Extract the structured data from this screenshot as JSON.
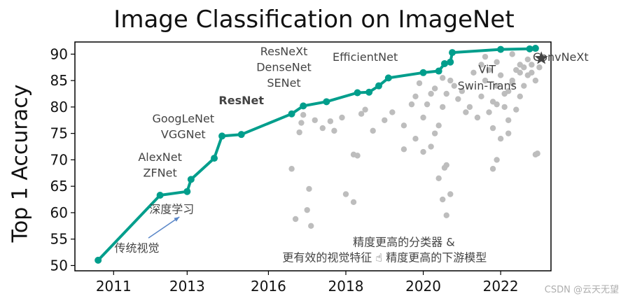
{
  "chart_data": {
    "type": "scatter",
    "title": "Image Classification on ImageNet",
    "xlabel": "",
    "ylabel": "Top 1 Accuracy",
    "xlim": [
      2010,
      2022.3
    ],
    "ylim": [
      49,
      92.3
    ],
    "xtick_positions": [
      2011,
      2012.9,
      2015,
      2017,
      2019,
      2021
    ],
    "xtick_labels": [
      "2011",
      "2013",
      "2016",
      "2018",
      "2020",
      "2022"
    ],
    "yticks": [
      50,
      55,
      60,
      65,
      70,
      75,
      80,
      85,
      90
    ],
    "grid": false,
    "colors": {
      "sota": "#009e8c",
      "others": "#bdbdbd",
      "convnext": "#444444",
      "vit": "#cc3333",
      "efficientnet": "#4a7ab8",
      "cn_text": "#cc0000",
      "arrow": "#5a87c8"
    },
    "series": [
      {
        "x": [
          2010.6,
          2012.2,
          2012.9,
          2013.0,
          2013.6,
          2013.8,
          2014.3,
          2015.6,
          2015.9,
          2016.5,
          2017.3,
          2017.6,
          2017.85,
          2018.1,
          2019.0,
          2019.4,
          2019.55,
          2019.7,
          2019.75,
          2021.0,
          2021.75,
          2021.9
        ],
        "y": [
          51,
          63.3,
          64,
          66.3,
          70.3,
          74.5,
          74.8,
          78.7,
          80.2,
          81,
          82.7,
          82.8,
          84,
          85.5,
          86.5,
          86.8,
          88.2,
          88.5,
          90.3,
          90.9,
          91.0,
          91.1
        ]
      },
      {
        "x": [
          2015.6,
          2015.8,
          2015.85,
          2015.9,
          2016.2,
          2016.4,
          2016.6,
          2016.7,
          2016.9,
          2017.2,
          2017.3,
          2017.4,
          2017.5,
          2017.7,
          2018.0,
          2018.2,
          2018.5,
          2018.7,
          2018.8,
          2018.9,
          2019.0,
          2019.1,
          2019.2,
          2019.3,
          2019.4,
          2019.5,
          2019.6,
          2019.7,
          2019.3,
          2019.5,
          2019.8,
          2020.0,
          2020.2,
          2020.4,
          2020.5,
          2020.6,
          2020.7,
          2020.8,
          2020.9,
          2021.0,
          2021.1,
          2021.2,
          2021.3,
          2021.4,
          2021.5,
          2021.6,
          2021.7,
          2021.8,
          2021.9,
          2022.0,
          2020.3,
          2020.5,
          2020.7,
          2020.9,
          2021.1,
          2021.3,
          2021.5,
          2021.7,
          2021.2,
          2020.8,
          2021.0,
          2021.4,
          2021.6,
          2020.6,
          2020.9,
          2021.3,
          2021.5,
          2021.8,
          2019.9,
          2020.1,
          2018.8,
          2019.2,
          2019.6,
          2018.5,
          2019.0,
          2021.2,
          2021.9,
          2016.0,
          2015.7,
          2016.1,
          2016.05,
          2017.0,
          2017.2,
          2019.4,
          2019.55,
          2019.7,
          2019.5,
          2019.6,
          2020.8,
          2020.9,
          2021.95
        ],
        "y": [
          68.3,
          75.2,
          77.0,
          78.5,
          77.5,
          76.0,
          77.3,
          75.5,
          78.0,
          71.0,
          70.8,
          78.7,
          79.5,
          75.5,
          77.5,
          79.0,
          76.5,
          80.5,
          82.0,
          84.5,
          78.0,
          80.5,
          82.5,
          75.0,
          76.5,
          80.0,
          82.5,
          85.0,
          83.5,
          85.5,
          84.0,
          83.0,
          80.0,
          78.0,
          82.0,
          85.0,
          79.0,
          81.0,
          84.0,
          86.0,
          80.0,
          83.0,
          85.0,
          87.0,
          82.0,
          84.0,
          86.0,
          88.0,
          85.0,
          87.5,
          86.5,
          88.0,
          87.0,
          80.5,
          82.5,
          84.5,
          86.5,
          89.0,
          77.5,
          76.0,
          74.0,
          79.5,
          87.5,
          89.5,
          88.5,
          90.0,
          88.0,
          86.5,
          81.5,
          79.0,
          74.0,
          72.5,
          69.0,
          72.0,
          71.5,
          75.0,
          71.0,
          60.5,
          58.8,
          57.5,
          64.5,
          63.5,
          62.0,
          66.5,
          68.5,
          63.5,
          62.5,
          59.5,
          68.3,
          70.0,
          71.2
        ]
      },
      {
        "x": [
          2022.05
        ],
        "y": [
          89.2
        ]
      }
    ],
    "labels": [
      {
        "text": "AlexNet",
        "x": 2012.2,
        "y": 69.8,
        "color": "#444",
        "weight": "normal",
        "size": 16
      },
      {
        "text": "ZFNet",
        "x": 2012.2,
        "y": 66.8,
        "color": "#444",
        "weight": "normal",
        "size": 16
      },
      {
        "text": "GoogLeNet",
        "x": 2012.8,
        "y": 77.1,
        "color": "#444",
        "weight": "normal",
        "size": 16
      },
      {
        "text": "VGGNet",
        "x": 2012.8,
        "y": 74.1,
        "color": "#444",
        "weight": "normal",
        "size": 16
      },
      {
        "text": "ResNet",
        "x": 2014.3,
        "y": 80.5,
        "color": "#333",
        "weight": "bold",
        "size": 16
      },
      {
        "text": "ResNeXt",
        "x": 2015.4,
        "y": 89.8,
        "color": "#444",
        "weight": "normal",
        "size": 16
      },
      {
        "text": "DenseNet",
        "x": 2015.4,
        "y": 86.8,
        "color": "#444",
        "weight": "normal",
        "size": 16
      },
      {
        "text": "SENet",
        "x": 2015.4,
        "y": 83.8,
        "color": "#444",
        "weight": "normal",
        "size": 16
      },
      {
        "text": "EfficientNet",
        "x": 2017.5,
        "y": 88.7,
        "color": "#4a7ab8",
        "weight": "normal",
        "size": 16
      },
      {
        "text": "ViT",
        "x": 2020.65,
        "y": 86.4,
        "color": "#cc3333",
        "weight": "normal",
        "size": 16
      },
      {
        "text": "Swin-Trans",
        "x": 2020.65,
        "y": 83.3,
        "color": "#cc3333",
        "weight": "normal",
        "size": 16
      },
      {
        "text": "ConvNeXt",
        "x": 2022.55,
        "y": 88.7,
        "color": "#333",
        "weight": "normal",
        "size": 16
      },
      {
        "text": "深度学习",
        "x": 2012.5,
        "y": 59.9,
        "color": "#444",
        "weight": "normal",
        "size": 15
      },
      {
        "text": "传统视觉",
        "x": 2011.6,
        "y": 52.6,
        "color": "#444",
        "weight": "normal",
        "size": 15
      },
      {
        "text": "精度更高的分类器 &",
        "x": 2018.5,
        "y": 53.7,
        "color": "#cc0000",
        "weight": "normal",
        "size": 15
      },
      {
        "text": "更有效的视觉特征 ☝ 精度更高的下游模型",
        "x": 2018.0,
        "y": 50.8,
        "color": "#cc0000",
        "weight": "normal",
        "size": 15
      }
    ]
  },
  "watermark": "CSDN @云天无望"
}
